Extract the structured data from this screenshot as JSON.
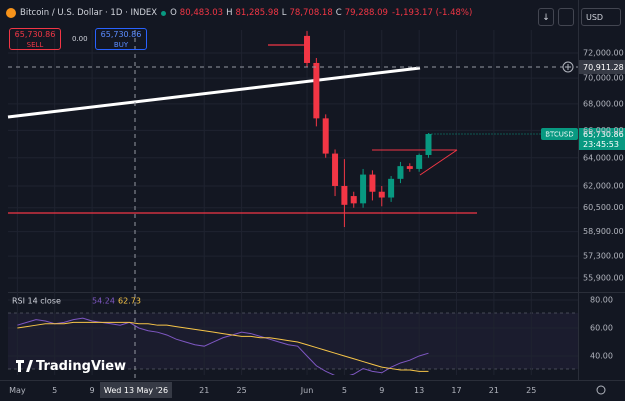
{
  "ui": {
    "header": {
      "title": "Bitcoin / U.S. Dollar · 1D · INDEX",
      "ohlc": [
        {
          "key": "O",
          "value": "80,483.03"
        },
        {
          "key": "H",
          "value": "81,285.98"
        },
        {
          "key": "L",
          "value": "78,708.18"
        },
        {
          "key": "C",
          "value": "79,288.09"
        }
      ],
      "change": "-1,193.17 (-1.48%)"
    },
    "currency": "USD",
    "sell": {
      "price": "65,730.86",
      "label": "SELL"
    },
    "spread": "0.00",
    "buy": {
      "price": "65,730.86",
      "label": "BUY"
    },
    "last_price": {
      "symbol": "BTCUSD",
      "price": "65,730.86",
      "countdown": "23:45:53"
    },
    "crosshair": {
      "price": "70,911.28",
      "date": "Wed 13 May '26"
    },
    "logo": "TradingView"
  },
  "chart_data": [
    {
      "type": "candlestick",
      "x": [
        "2026-06-01",
        "2026-06-02",
        "2026-06-03",
        "2026-06-04",
        "2026-06-05",
        "2026-06-06",
        "2026-06-07",
        "2026-06-08",
        "2026-06-09",
        "2026-06-10",
        "2026-06-11",
        "2026-06-12",
        "2026-06-13",
        "2026-06-14"
      ],
      "open": [
        73400,
        71200,
        66900,
        64300,
        62000,
        61300,
        60800,
        62800,
        61600,
        61200,
        62500,
        63400,
        63200,
        64200
      ],
      "high": [
        73800,
        71600,
        67200,
        64600,
        63900,
        61600,
        63200,
        63100,
        62000,
        62700,
        63700,
        63600,
        64300,
        65800
      ],
      "low": [
        70900,
        66300,
        64000,
        61300,
        59200,
        60500,
        60500,
        61000,
        60600,
        60900,
        62200,
        63000,
        63000,
        64000
      ],
      "close": [
        71200,
        66900,
        64300,
        62000,
        60700,
        60800,
        62800,
        61600,
        61200,
        62500,
        63400,
        63200,
        64200,
        65730.86
      ],
      "up_color": "#089981",
      "down_color": "#f23645",
      "log_scale": true,
      "xlim": [
        "2026-04-30",
        "2026-06-30"
      ],
      "xticks": [
        {
          "value": "2026-05-01",
          "label": "May"
        },
        {
          "value": "2026-05-05",
          "label": "5"
        },
        {
          "value": "2026-05-09",
          "label": "9"
        },
        {
          "value": "2026-05-21",
          "label": "21"
        },
        {
          "value": "2026-05-25",
          "label": "25"
        },
        {
          "value": "2026-06-01",
          "label": "Jun"
        },
        {
          "value": "2026-06-05",
          "label": "5"
        },
        {
          "value": "2026-06-09",
          "label": "9"
        },
        {
          "value": "2026-06-13",
          "label": "13"
        },
        {
          "value": "2026-06-17",
          "label": "17"
        },
        {
          "value": "2026-06-21",
          "label": "21"
        },
        {
          "value": "2026-06-25",
          "label": "25"
        }
      ],
      "ylim": [
        55030,
        73890
      ],
      "yticks": [
        {
          "value": 72000,
          "label": "72,000.00"
        },
        {
          "value": 70000,
          "label": "70,000.00"
        },
        {
          "value": 68000,
          "label": "68,000.00"
        },
        {
          "value": 66000,
          "label": "66,000.00"
        },
        {
          "value": 64000,
          "label": "64,000.00"
        },
        {
          "value": 62000,
          "label": "62,000.00"
        },
        {
          "value": 60500,
          "label": "60,500.00"
        },
        {
          "value": 58900,
          "label": "58,900.00"
        },
        {
          "value": 57300,
          "label": "57,300.00"
        },
        {
          "value": 55900,
          "label": "55,900.00"
        }
      ]
    },
    {
      "type": "line",
      "title": "RSI 14 close",
      "legend_values": [
        54.24,
        62.73
      ],
      "x": [
        "2026-05-01",
        "2026-05-02",
        "2026-05-03",
        "2026-05-04",
        "2026-05-05",
        "2026-05-06",
        "2026-05-07",
        "2026-05-08",
        "2026-05-09",
        "2026-05-10",
        "2026-05-11",
        "2026-05-12",
        "2026-05-13",
        "2026-05-14",
        "2026-05-15",
        "2026-05-16",
        "2026-05-17",
        "2026-05-18",
        "2026-05-19",
        "2026-05-20",
        "2026-05-21",
        "2026-05-22",
        "2026-05-23",
        "2026-05-24",
        "2026-05-25",
        "2026-05-26",
        "2026-05-27",
        "2026-05-28",
        "2026-05-29",
        "2026-05-30",
        "2026-05-31",
        "2026-06-01",
        "2026-06-02",
        "2026-06-03",
        "2026-06-04",
        "2026-06-05",
        "2026-06-06",
        "2026-06-07",
        "2026-06-08",
        "2026-06-09",
        "2026-06-10",
        "2026-06-11",
        "2026-06-12",
        "2026-06-13",
        "2026-06-14"
      ],
      "series": [
        {
          "color": "#7e57c2",
          "values": [
            62,
            64,
            66,
            65,
            63,
            64,
            66,
            67,
            65,
            64,
            63,
            62,
            64,
            60,
            58,
            57,
            55,
            52,
            50,
            48,
            47,
            50,
            53,
            55,
            57,
            56,
            54,
            52,
            50,
            48,
            47,
            40,
            33,
            29,
            26,
            25,
            27,
            31,
            29,
            28,
            32,
            35,
            37,
            40,
            42
          ]
        },
        {
          "color": "#f7c548",
          "values": [
            60,
            61,
            62,
            63,
            63,
            63,
            64,
            64,
            64,
            64,
            64,
            64,
            64,
            63,
            63,
            62,
            62,
            61,
            60,
            59,
            58,
            57,
            56,
            55,
            54,
            54,
            53,
            53,
            52,
            51,
            50,
            48,
            46,
            44,
            42,
            40,
            38,
            36,
            34,
            32,
            31,
            30,
            30,
            29,
            29
          ]
        }
      ],
      "ylim": [
        26.4,
        85
      ],
      "yticks": [
        {
          "value": 80,
          "label": "80.00"
        },
        {
          "value": 60,
          "label": "60.00"
        },
        {
          "value": 40,
          "label": "40.00"
        }
      ]
    }
  ]
}
